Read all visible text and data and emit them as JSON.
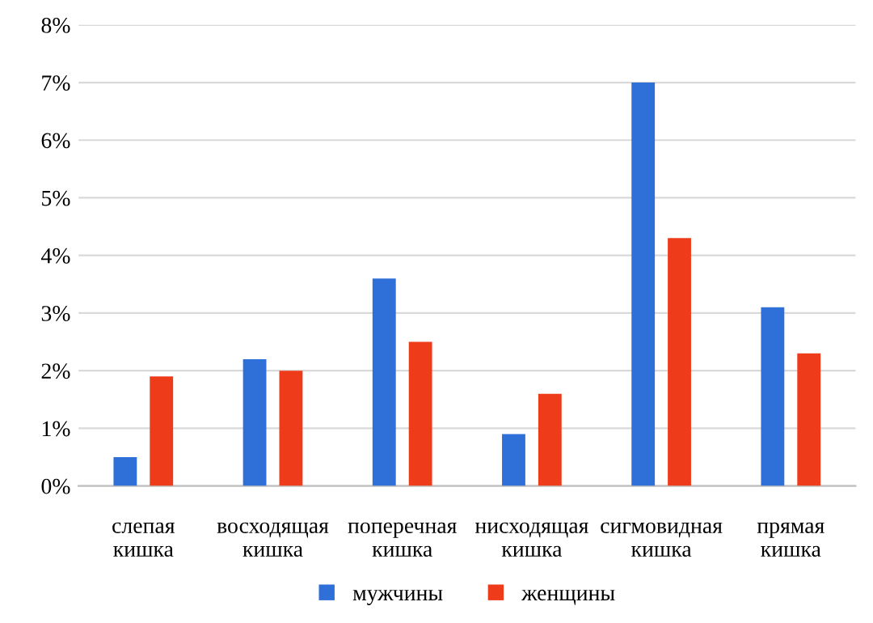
{
  "chart_data": {
    "type": "bar",
    "categories": [
      "слепая\nкишка",
      "восходящая\nкишка",
      "поперечная\nкишка",
      "нисходящая\nкишка",
      "сигмовидная\nкишка",
      "прямая\nкишка"
    ],
    "series": [
      {
        "name": "мужчины",
        "color": "#2e6fd8",
        "values": [
          0.5,
          2.2,
          3.6,
          0.9,
          7.0,
          3.1
        ]
      },
      {
        "name": "женщины",
        "color": "#ee3b1a",
        "values": [
          1.9,
          2.0,
          2.5,
          1.6,
          4.3,
          2.3
        ]
      }
    ],
    "ylim": [
      0,
      8
    ],
    "yticks": [
      {
        "value": 0,
        "label": "0%"
      },
      {
        "value": 1,
        "label": "1%"
      },
      {
        "value": 2,
        "label": "2%"
      },
      {
        "value": 3,
        "label": "3%"
      },
      {
        "value": 4,
        "label": "4%"
      },
      {
        "value": 5,
        "label": "5%"
      },
      {
        "value": 6,
        "label": "6%"
      },
      {
        "value": 7,
        "label": "7%"
      },
      {
        "value": 8,
        "label": "8%"
      }
    ],
    "grid": "y",
    "legend": "bottom"
  }
}
